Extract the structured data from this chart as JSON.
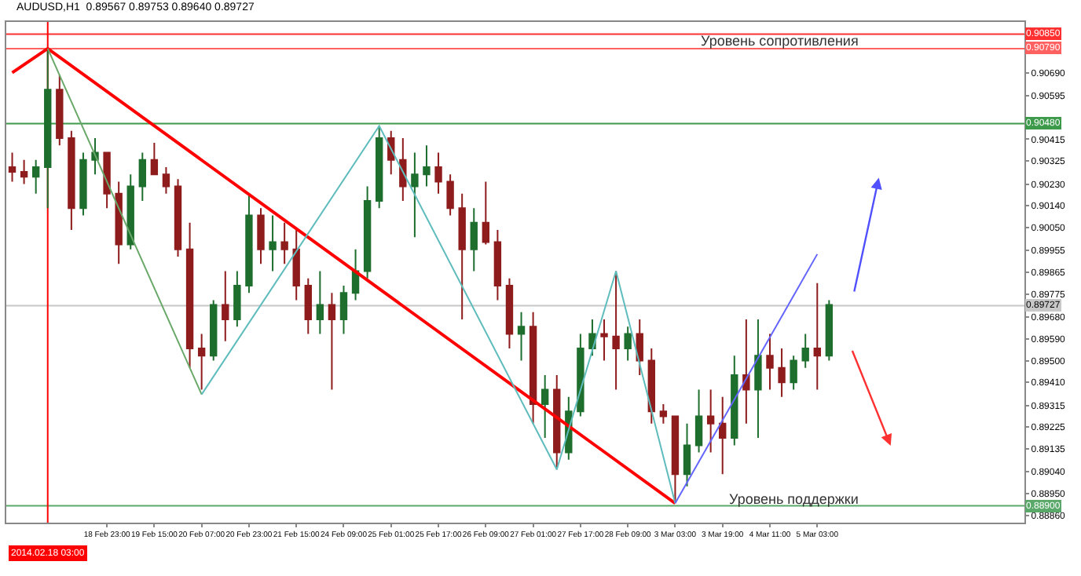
{
  "chart_data": {
    "type": "candlestick",
    "title": "AUDUSD,H1  0.89567 0.89753 0.89640 0.89727",
    "categories": [
      null,
      null,
      null,
      null,
      null,
      null,
      null,
      null,
      "18 Feb 23:00",
      null,
      null,
      null,
      "19 Feb 15:00",
      null,
      null,
      null,
      "20 Feb 07:00",
      null,
      null,
      null,
      "20 Feb 23:00",
      null,
      null,
      null,
      "21 Feb 15:00",
      null,
      null,
      null,
      "24 Feb 09:00",
      null,
      null,
      null,
      "25 Feb 01:00",
      null,
      null,
      null,
      "25 Feb 17:00",
      null,
      null,
      null,
      "26 Feb 09:00",
      null,
      null,
      null,
      "27 Feb 01:00",
      null,
      null,
      null,
      "27 Feb 17:00",
      null,
      null,
      null,
      "28 Feb 09:00",
      null,
      null,
      null,
      "3 Mar 03:00",
      null,
      null,
      null,
      "3 Mar 19:00",
      null,
      null,
      null,
      "4 Mar 11:00",
      null,
      null,
      null,
      "5 Mar 03:00",
      null,
      null,
      null,
      null,
      null,
      null,
      null,
      null,
      null,
      null,
      null,
      null,
      null,
      null,
      null,
      null,
      null
    ],
    "series": [
      {
        "color": "#1e6e2e",
        "ohlc": [
          null,
          null,
          [
            0.9026,
            0.9033,
            0.9019,
            0.903
          ],
          [
            0.903,
            0.9079,
            0.9013,
            0.9062
          ],
          null,
          null,
          [
            0.9013,
            0.9036,
            0.901,
            0.9033
          ],
          [
            0.9033,
            0.9042,
            0.9027,
            0.9036
          ],
          null,
          null,
          [
            0.8998,
            0.9027,
            0.8996,
            0.9022
          ],
          [
            0.9022,
            0.9036,
            0.9016,
            0.9033
          ],
          null,
          null,
          null,
          null,
          null,
          [
            0.8952,
            0.8975,
            0.895,
            0.8973
          ],
          null,
          [
            0.8967,
            0.8987,
            0.8964,
            0.8981
          ],
          [
            0.8981,
            0.9019,
            0.8978,
            0.901
          ],
          null,
          [
            0.8996,
            0.901,
            0.8987,
            0.8999
          ],
          null,
          null,
          null,
          [
            0.8967,
            0.8987,
            0.8961,
            0.8973
          ],
          null,
          [
            0.8967,
            0.8981,
            0.8961,
            0.8978
          ],
          [
            0.8978,
            0.8996,
            0.8975,
            0.8987
          ],
          [
            0.8987,
            0.9022,
            0.8984,
            0.9016
          ],
          [
            0.9016,
            0.9047,
            0.9013,
            0.9042
          ],
          null,
          null,
          [
            0.9022,
            0.9036,
            0.9001,
            0.9027
          ],
          [
            0.9027,
            0.9039,
            0.9022,
            0.903
          ],
          null,
          null,
          null,
          [
            0.8996,
            0.9013,
            0.8987,
            0.9007
          ],
          null,
          null,
          null,
          [
            0.8961,
            0.897,
            0.895,
            0.8964
          ],
          null,
          [
            0.8932,
            0.8944,
            0.8918,
            0.8938
          ],
          null,
          [
            0.8912,
            0.8935,
            0.8909,
            0.8929
          ],
          [
            0.8929,
            0.8961,
            0.8927,
            0.8955
          ],
          [
            0.8955,
            0.8967,
            0.8952,
            0.8961
          ],
          null,
          null,
          [
            0.8955,
            0.8964,
            0.895,
            0.8961
          ],
          null,
          null,
          null,
          null,
          [
            0.8903,
            0.8924,
            0.8898,
            0.8915
          ],
          [
            0.8915,
            0.8938,
            0.8912,
            0.8927
          ],
          null,
          null,
          [
            0.8918,
            0.8952,
            0.8915,
            0.8944
          ],
          null,
          [
            0.8938,
            0.8967,
            0.8918,
            0.8952
          ],
          null,
          null,
          [
            0.8941,
            0.8952,
            0.8938,
            0.895
          ],
          [
            0.895,
            0.8961,
            0.8947,
            0.8955
          ],
          null,
          [
            0.8952,
            0.8975,
            0.895,
            0.8973
          ],
          null,
          null,
          null,
          null,
          null,
          null,
          null,
          null,
          null,
          null,
          null,
          null,
          null,
          null,
          null,
          null
        ]
      },
      {
        "color": "#8e1c1c",
        "ohlc": [
          [
            0.903,
            0.9036,
            0.9024,
            0.9028
          ],
          [
            0.9028,
            0.9033,
            0.9023,
            0.9026
          ],
          null,
          null,
          [
            0.9062,
            0.9068,
            0.9039,
            0.9042
          ],
          [
            0.9042,
            0.9045,
            0.9004,
            0.9013
          ],
          null,
          null,
          [
            0.9036,
            0.9036,
            0.9013,
            0.9019
          ],
          [
            0.9019,
            0.9024,
            0.899,
            0.8998
          ],
          null,
          null,
          [
            0.9033,
            0.904,
            0.9027,
            0.9027
          ],
          [
            0.9027,
            0.903,
            0.9019,
            0.9022
          ],
          [
            0.9022,
            0.9025,
            0.8993,
            0.8996
          ],
          [
            0.8996,
            0.9007,
            0.8947,
            0.8955
          ],
          [
            0.8955,
            0.8961,
            0.8938,
            0.8952
          ],
          null,
          [
            0.8973,
            0.8987,
            0.8958,
            0.8967
          ],
          null,
          null,
          [
            0.901,
            0.9013,
            0.899,
            0.8996
          ],
          null,
          [
            0.8999,
            0.9007,
            0.899,
            0.8996
          ],
          [
            0.8996,
            0.9004,
            0.8975,
            0.8981
          ],
          [
            0.8981,
            0.8984,
            0.8961,
            0.8967
          ],
          null,
          [
            0.8973,
            0.8978,
            0.8938,
            0.8967
          ],
          null,
          null,
          null,
          null,
          [
            0.9042,
            0.9045,
            0.9027,
            0.9033
          ],
          [
            0.9033,
            0.9042,
            0.9016,
            0.9022
          ],
          null,
          null,
          [
            0.903,
            0.9036,
            0.9019,
            0.9024
          ],
          [
            0.9024,
            0.9027,
            0.901,
            0.9013
          ],
          [
            0.9013,
            0.9019,
            0.8967,
            0.8996
          ],
          null,
          [
            0.9007,
            0.9024,
            0.8998,
            0.8999
          ],
          [
            0.8999,
            0.9004,
            0.8975,
            0.8981
          ],
          [
            0.8981,
            0.8984,
            0.8955,
            0.8961
          ],
          null,
          [
            0.8964,
            0.897,
            0.8924,
            0.8932
          ],
          null,
          [
            0.8938,
            0.8944,
            0.8905,
            0.8912
          ],
          null,
          null,
          null,
          [
            0.8961,
            0.8967,
            0.895,
            0.896
          ],
          [
            0.896,
            0.8987,
            0.8938,
            0.8955
          ],
          null,
          [
            0.8961,
            0.8967,
            0.8944,
            0.895
          ],
          [
            0.895,
            0.8955,
            0.8924,
            0.8929
          ],
          [
            0.8929,
            0.8932,
            0.8924,
            0.8927
          ],
          [
            0.8927,
            0.8927,
            0.8891,
            0.8903
          ],
          null,
          null,
          [
            0.8927,
            0.8938,
            0.8912,
            0.8924
          ],
          [
            0.8924,
            0.8935,
            0.8903,
            0.8918
          ],
          null,
          [
            0.8944,
            0.8967,
            0.8924,
            0.8938
          ],
          null,
          [
            0.8952,
            0.8961,
            0.8938,
            0.8947
          ],
          [
            0.8947,
            0.8955,
            0.8935,
            0.8941
          ],
          null,
          null,
          [
            0.8955,
            0.8982,
            0.8938,
            0.8952
          ],
          null,
          null,
          null,
          null,
          null,
          null,
          null,
          null,
          null,
          null,
          null,
          null,
          null,
          null,
          null,
          null,
          null
        ]
      },
      {
        "type": "line",
        "color": "#ff0000",
        "values": [
          0.9069,
          null,
          null,
          0.9079,
          null,
          null,
          null,
          null,
          null,
          null,
          null,
          null,
          null,
          null,
          null,
          null,
          null,
          null,
          null,
          null,
          null,
          null,
          null,
          null,
          null,
          null,
          null,
          null,
          null,
          null,
          null,
          null,
          null,
          null,
          null,
          null,
          null,
          null,
          null,
          null,
          null,
          null,
          null,
          null,
          null,
          null,
          null,
          null,
          null,
          null,
          null,
          null,
          null,
          null,
          null,
          null,
          0.8891,
          null,
          null,
          null,
          null,
          null,
          null,
          null,
          null,
          null,
          null,
          null,
          null,
          null,
          null,
          null,
          null,
          null,
          null,
          null,
          null,
          null,
          null,
          null,
          null,
          null,
          null,
          null,
          null,
          null
        ]
      },
      {
        "type": "line",
        "color": "#6aa86a",
        "values": [
          null,
          null,
          null,
          0.9079,
          null,
          null,
          null,
          null,
          null,
          null,
          null,
          null,
          null,
          null,
          null,
          null,
          0.8936,
          null,
          null,
          null,
          null,
          null,
          null,
          null,
          null,
          null,
          null,
          null,
          null,
          null,
          null,
          null,
          null,
          null,
          null,
          null,
          null,
          null,
          null,
          null,
          null,
          null,
          null,
          null,
          null,
          null,
          null,
          null,
          null,
          null,
          null,
          null,
          null,
          null,
          null,
          null,
          null,
          null,
          null,
          null,
          null,
          null,
          null,
          null,
          null,
          null,
          null,
          null,
          null,
          null,
          null,
          null,
          null,
          null,
          null,
          null,
          null,
          null,
          null,
          null,
          null,
          null,
          null,
          null,
          null,
          null
        ]
      },
      {
        "type": "line",
        "color": "#5fbcbc",
        "values": [
          null,
          null,
          null,
          null,
          null,
          null,
          null,
          null,
          null,
          null,
          null,
          null,
          null,
          null,
          null,
          null,
          0.8936,
          null,
          null,
          null,
          null,
          null,
          null,
          null,
          null,
          null,
          null,
          null,
          null,
          null,
          null,
          0.9047,
          null,
          null,
          null,
          null,
          null,
          null,
          null,
          null,
          null,
          null,
          null,
          null,
          null,
          null,
          0.8905,
          null,
          null,
          null,
          null,
          0.8987,
          null,
          null,
          null,
          null,
          0.8891,
          null,
          null,
          null,
          null,
          null,
          null,
          null,
          null,
          null,
          null,
          null,
          null,
          null,
          null,
          null,
          null,
          null,
          null,
          null,
          null,
          null,
          null,
          null,
          null,
          null,
          null,
          null,
          null,
          null
        ]
      },
      {
        "type": "line",
        "color": "#6464ff",
        "values": [
          null,
          null,
          null,
          null,
          null,
          null,
          null,
          null,
          null,
          null,
          null,
          null,
          null,
          null,
          null,
          null,
          null,
          null,
          null,
          null,
          null,
          null,
          null,
          null,
          null,
          null,
          null,
          null,
          null,
          null,
          null,
          null,
          null,
          null,
          null,
          null,
          null,
          null,
          null,
          null,
          null,
          null,
          null,
          null,
          null,
          null,
          null,
          null,
          null,
          null,
          null,
          null,
          null,
          null,
          null,
          null,
          0.8891,
          null,
          null,
          null,
          null,
          null,
          null,
          null,
          null,
          null,
          null,
          null,
          0.8994,
          null,
          null,
          null,
          null,
          null,
          null,
          null,
          null,
          null,
          null,
          null,
          null,
          null,
          null,
          null,
          null,
          null
        ]
      }
    ],
    "ylim": [
      0.8883,
      0.909
    ],
    "yticks": [
      {
        "value": 0.8886,
        "label": "0.88860"
      },
      {
        "value": 0.8895,
        "label": "0.88950"
      },
      {
        "value": 0.8904,
        "label": "0.89040"
      },
      {
        "value": 0.89135,
        "label": "0.89135"
      },
      {
        "value": 0.89225,
        "label": "0.89225"
      },
      {
        "value": 0.89315,
        "label": "0.89315"
      },
      {
        "value": 0.8941,
        "label": "0.89410"
      },
      {
        "value": 0.895,
        "label": "0.89500"
      },
      {
        "value": 0.8959,
        "label": "0.89590"
      },
      {
        "value": 0.8968,
        "label": "0.89680"
      },
      {
        "value": 0.89775,
        "label": "0.89775"
      },
      {
        "value": 0.89865,
        "label": "0.89865"
      },
      {
        "value": 0.89955,
        "label": "0.89955"
      },
      {
        "value": 0.9005,
        "label": "0.90050"
      },
      {
        "value": 0.9014,
        "label": "0.90140"
      },
      {
        "value": 0.9023,
        "label": "0.90230"
      },
      {
        "value": 0.90325,
        "label": "0.90325"
      },
      {
        "value": 0.90415,
        "label": "0.90415"
      },
      {
        "value": 0.90595,
        "label": "0.90595"
      },
      {
        "value": 0.9069,
        "label": "0.90690"
      }
    ],
    "ref_lines": [
      {
        "axis": "y",
        "value": 0.9085,
        "label": "0.90850",
        "color": "#ff3030"
      },
      {
        "axis": "y",
        "value": 0.9079,
        "label": "0.90790",
        "color": "#ff6060"
      },
      {
        "axis": "y",
        "value": 0.9048,
        "label": "0.90480",
        "color": "#3c9a4a"
      },
      {
        "axis": "y",
        "value": 0.89727,
        "label": "0.89727",
        "color": "#c8c8c8"
      },
      {
        "axis": "y",
        "value": 0.889,
        "label": "0.88900",
        "color": "#5aa86a"
      }
    ],
    "annotations": [
      {
        "text": "Уровень сопротивления",
        "y": 0.9082
      },
      {
        "text": "Уровень поддержки",
        "y": 0.8893
      },
      "2014.02.18 03:00"
    ],
    "marker": "none",
    "line_style": "solid",
    "grid": false
  }
}
